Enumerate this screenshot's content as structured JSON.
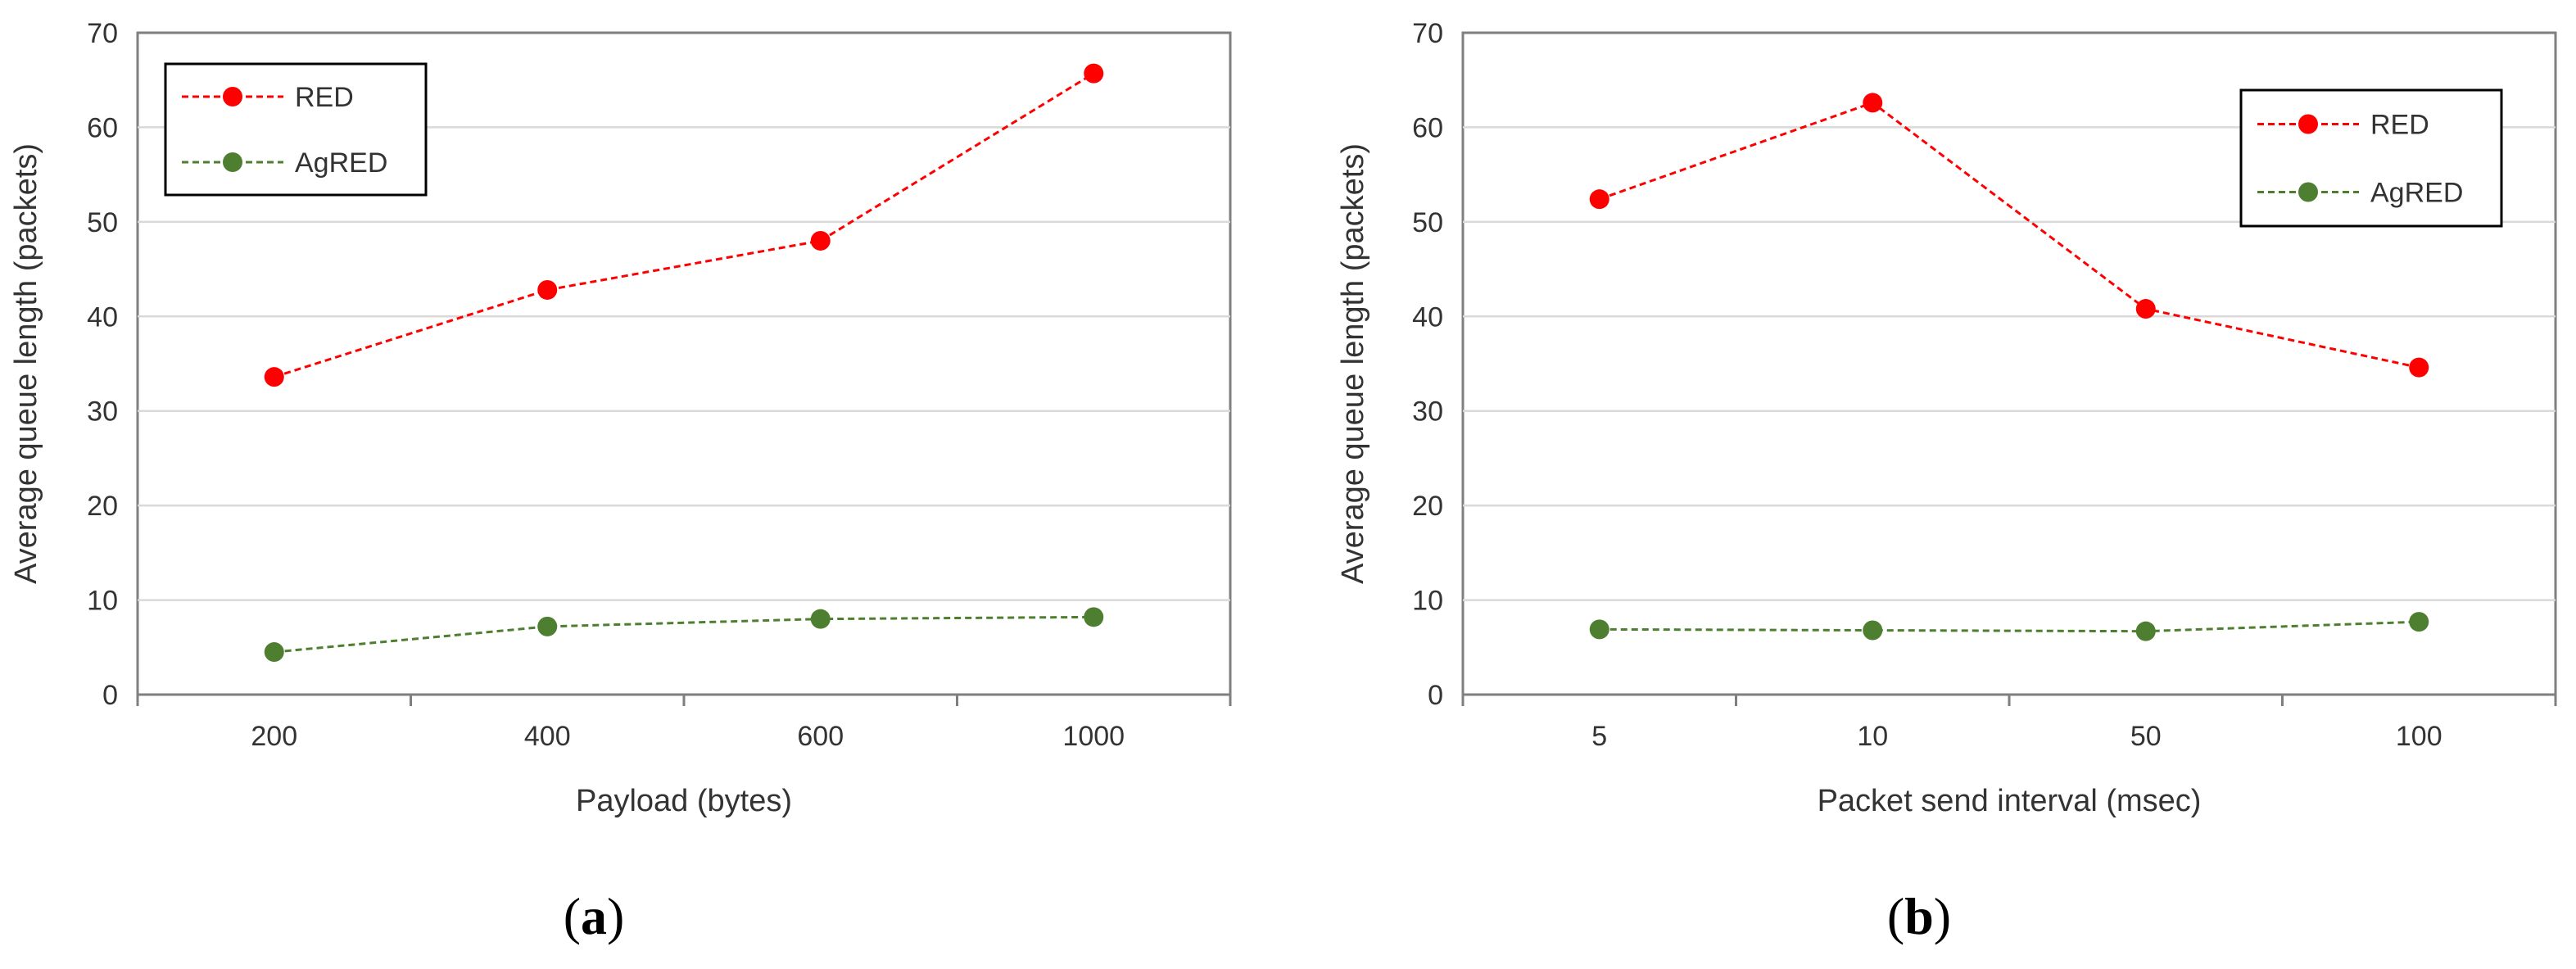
{
  "colors": {
    "red": "#ff0000",
    "green": "#4e7f31",
    "grid": "#d9d9d9",
    "axis": "#7f7f7f",
    "text": "#333333"
  },
  "chart_data": [
    {
      "type": "line",
      "panel_label": "a",
      "categories": [
        "200",
        "400",
        "600",
        "1000"
      ],
      "series": [
        {
          "name": "RED",
          "values": [
            33.6,
            42.8,
            48.0,
            65.7
          ],
          "color": "#ff0000"
        },
        {
          "name": "AgRED",
          "values": [
            4.5,
            7.2,
            8.0,
            8.2
          ],
          "color": "#4e7f31"
        }
      ],
      "xlabel": "Payload (bytes)",
      "ylabel": "Average  queue  length  (packets)",
      "ylim": [
        0,
        70
      ],
      "yticks": [
        "0",
        "10",
        "20",
        "30",
        "40",
        "50",
        "60",
        "70"
      ],
      "grid": true,
      "legend_position": "top-left"
    },
    {
      "type": "line",
      "panel_label": "b",
      "categories": [
        "5",
        "10",
        "50",
        "100"
      ],
      "series": [
        {
          "name": "RED",
          "values": [
            52.4,
            62.6,
            40.8,
            34.6
          ],
          "color": "#ff0000"
        },
        {
          "name": "AgRED",
          "values": [
            6.9,
            6.8,
            6.7,
            7.7
          ],
          "color": "#4e7f31"
        }
      ],
      "xlabel": "Packet send interval  (msec)",
      "ylabel": "Average  queue  length  (packets)",
      "ylim": [
        0,
        70
      ],
      "yticks": [
        "0",
        "10",
        "20",
        "30",
        "40",
        "50",
        "60",
        "70"
      ],
      "grid": true,
      "legend_position": "top-right"
    }
  ]
}
